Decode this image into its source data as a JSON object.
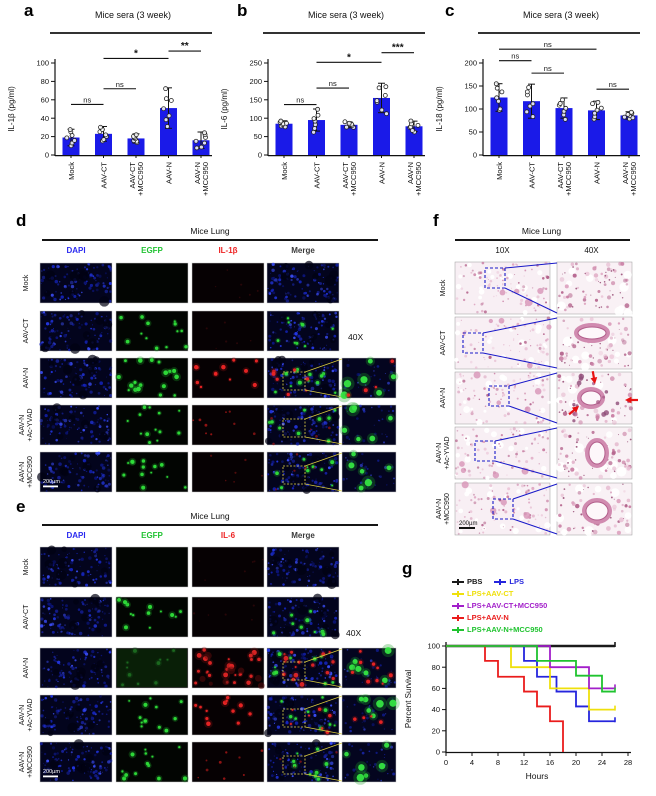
{
  "colors": {
    "bar_fill": "#1a1ae8",
    "axis": "#111111",
    "dapi_blue": "#2a2af0",
    "egfp_green": "#22c333",
    "marker_red": "#ee2222",
    "histology_pink": "#f8eff4"
  },
  "chart_data": [
    {
      "type": "bar",
      "panel_label": "a",
      "title": "Mice sera (3 week)",
      "ylabel": "IL-1β (pg/ml)",
      "xlabel": "",
      "ylim": [
        0,
        100
      ],
      "yticks": [
        0,
        20,
        40,
        60,
        80,
        100
      ],
      "categories": [
        "Mock",
        "AAV-CT",
        "AAV-CT\n+MCC950",
        "AAV-N",
        "AAV-N\n+MCC950"
      ],
      "values": [
        19,
        23,
        18,
        51,
        16
      ],
      "errors": [
        9,
        8,
        5,
        22,
        9
      ],
      "significance": [
        {
          "from": 0,
          "to": 1,
          "label": "ns",
          "y": 55
        },
        {
          "from": 1,
          "to": 2,
          "label": "ns",
          "y": 72
        },
        {
          "from": 1,
          "to": 3,
          "label": "*",
          "y": 105
        },
        {
          "from": 3,
          "to": 4,
          "label": "**",
          "y": 113
        }
      ]
    },
    {
      "type": "bar",
      "panel_label": "b",
      "title": "Mice sera (3 week)",
      "ylabel": "IL-6 (pg/ml)",
      "xlabel": "",
      "ylim": [
        0,
        250
      ],
      "yticks": [
        0,
        50,
        100,
        150,
        200,
        250
      ],
      "categories": [
        "Mock",
        "AAV-CT",
        "AAV-CT\n+MCC950",
        "AAV-N",
        "AAV-N\n+MCC950"
      ],
      "values": [
        85,
        95,
        82,
        155,
        78
      ],
      "errors": [
        8,
        30,
        8,
        40,
        14
      ],
      "significance": [
        {
          "from": 0,
          "to": 1,
          "label": "ns",
          "y": 137
        },
        {
          "from": 1,
          "to": 2,
          "label": "ns",
          "y": 182
        },
        {
          "from": 1,
          "to": 3,
          "label": "*",
          "y": 252
        },
        {
          "from": 3,
          "to": 4,
          "label": "***",
          "y": 278
        }
      ]
    },
    {
      "type": "bar",
      "panel_label": "c",
      "title": "Mice sera (3 week)",
      "ylabel": "IL-18 (pg/ml)",
      "xlabel": "",
      "ylim": [
        0,
        200
      ],
      "yticks": [
        0,
        50,
        100,
        150,
        200
      ],
      "categories": [
        "Mock",
        "AAV-CT",
        "AAV-CT\n+MCC950",
        "AAV-N",
        "AAV-N\n+MCC950"
      ],
      "values": [
        125,
        117,
        102,
        97,
        86
      ],
      "errors": [
        30,
        37,
        22,
        20,
        8
      ],
      "significance": [
        {
          "from": 0,
          "to": 1,
          "label": "ns",
          "y": 205
        },
        {
          "from": 1,
          "to": 2,
          "label": "ns",
          "y": 178
        },
        {
          "from": 0,
          "to": 3,
          "label": "ns",
          "y": 230
        },
        {
          "from": 3,
          "to": 4,
          "label": "ns",
          "y": 143
        }
      ]
    },
    {
      "type": "line",
      "panel_label": "g",
      "title": "",
      "xlabel": "Hours",
      "ylabel": "Percent Survival",
      "xlim": [
        0,
        28
      ],
      "ylim": [
        0,
        100
      ],
      "xticks": [
        0,
        4,
        8,
        12,
        16,
        20,
        24,
        28
      ],
      "yticks": [
        0,
        20,
        40,
        60,
        80,
        100
      ],
      "series": [
        {
          "name": "PBS",
          "color": "#1a1a1a",
          "points": [
            [
              0,
              100
            ],
            [
              26,
              100
            ]
          ]
        },
        {
          "name": "LPS",
          "color": "#2525dd",
          "points": [
            [
              0,
              100
            ],
            [
              12,
              100
            ],
            [
              12,
              86
            ],
            [
              14,
              86
            ],
            [
              14,
              71
            ],
            [
              17,
              71
            ],
            [
              17,
              57
            ],
            [
              20,
              57
            ],
            [
              20,
              43
            ],
            [
              22,
              43
            ],
            [
              22,
              29
            ],
            [
              26,
              29
            ]
          ]
        },
        {
          "name": "LPS+AAV-CT",
          "color": "#efe00c",
          "points": [
            [
              0,
              100
            ],
            [
              10,
              100
            ],
            [
              10,
              80
            ],
            [
              16,
              80
            ],
            [
              16,
              60
            ],
            [
              22,
              60
            ],
            [
              22,
              40
            ],
            [
              26,
              40
            ]
          ]
        },
        {
          "name": "LPS+AAV-CT+MCC950",
          "color": "#a21fca",
          "points": [
            [
              0,
              100
            ],
            [
              16,
              100
            ],
            [
              16,
              80
            ],
            [
              22,
              80
            ],
            [
              22,
              60
            ],
            [
              26,
              60
            ]
          ]
        },
        {
          "name": "LPS+AAV-N",
          "color": "#ea1c1c",
          "points": [
            [
              0,
              100
            ],
            [
              6,
              100
            ],
            [
              6,
              86
            ],
            [
              8,
              86
            ],
            [
              8,
              71
            ],
            [
              12,
              71
            ],
            [
              12,
              57
            ],
            [
              14,
              57
            ],
            [
              14,
              43
            ],
            [
              16,
              43
            ],
            [
              16,
              29
            ],
            [
              18,
              29
            ],
            [
              18,
              0
            ]
          ]
        },
        {
          "name": "LPS+AAV-N+MCC950",
          "color": "#1fc32f",
          "points": [
            [
              0,
              100
            ],
            [
              14,
              100
            ],
            [
              14,
              86
            ],
            [
              20,
              86
            ],
            [
              20,
              72
            ],
            [
              24,
              72
            ],
            [
              24,
              57
            ],
            [
              26,
              57
            ]
          ]
        }
      ]
    }
  ],
  "panel_d": {
    "label": "d",
    "title": "Mice Lung",
    "magnification": "40X",
    "scale_bar": "200µm",
    "columns": [
      {
        "label": "DAPI",
        "color": "#2a2af0"
      },
      {
        "label": "EGFP",
        "color": "#22c333"
      },
      {
        "label": "IL-1β",
        "color": "#ee2222"
      },
      {
        "label": "Merge",
        "color": "#3a3a3a"
      }
    ],
    "rows": [
      {
        "label": "Mock",
        "egfp": "none",
        "red": "none",
        "inset": false
      },
      {
        "label": "AAV-CT",
        "egfp": "dots",
        "red": "none",
        "inset": false
      },
      {
        "label": "AAV-N",
        "egfp": "bright",
        "red": "spots",
        "inset": true
      },
      {
        "label": "AAV-N\n+Ac-YVAD",
        "egfp": "dots",
        "red": "faint",
        "inset": true
      },
      {
        "label": "AAV-N\n+MCC950",
        "egfp": "dots",
        "red": "dim",
        "inset": true,
        "scale_bar": "200µm"
      }
    ]
  },
  "panel_e": {
    "label": "e",
    "title": "Mice Lung",
    "magnification": "40X",
    "scale_bar": "200µm",
    "columns": [
      {
        "label": "DAPI",
        "color": "#2a2af0"
      },
      {
        "label": "EGFP",
        "color": "#22c333"
      },
      {
        "label": "IL-6",
        "color": "#ee2222"
      },
      {
        "label": "Merge",
        "color": "#3a3a3a"
      }
    ],
    "rows": [
      {
        "label": "Mock",
        "egfp": "none",
        "red": "none",
        "inset": false
      },
      {
        "label": "AAV-CT",
        "egfp": "dots",
        "red": "none",
        "inset": false
      },
      {
        "label": "AAV-N",
        "egfp": "wash",
        "red": "heavy",
        "inset": true
      },
      {
        "label": "AAV-N\n+Ac-YVAD",
        "egfp": "dots",
        "red": "spots",
        "inset": true
      },
      {
        "label": "AAV-N\n+MCC950",
        "egfp": "dots",
        "red": "faint",
        "inset": true,
        "scale_bar": "200µm"
      }
    ]
  },
  "panel_f": {
    "label": "f",
    "title": "Mice Lung",
    "scale_bar": "200µm",
    "columns": [
      {
        "label": "10X",
        "color": "#111111"
      },
      {
        "label": "40X",
        "color": "#111111"
      }
    ],
    "rows": [
      {
        "label": "Mock",
        "arrows": false
      },
      {
        "label": "AAV-CT",
        "arrows": false
      },
      {
        "label": "AAV-N",
        "arrows": true
      },
      {
        "label": "AAV-N\n+Ac-YVAD",
        "arrows": false
      },
      {
        "label": "AAV-N\n+MCC950",
        "arrows": false,
        "scale_bar": "200µm"
      }
    ]
  }
}
